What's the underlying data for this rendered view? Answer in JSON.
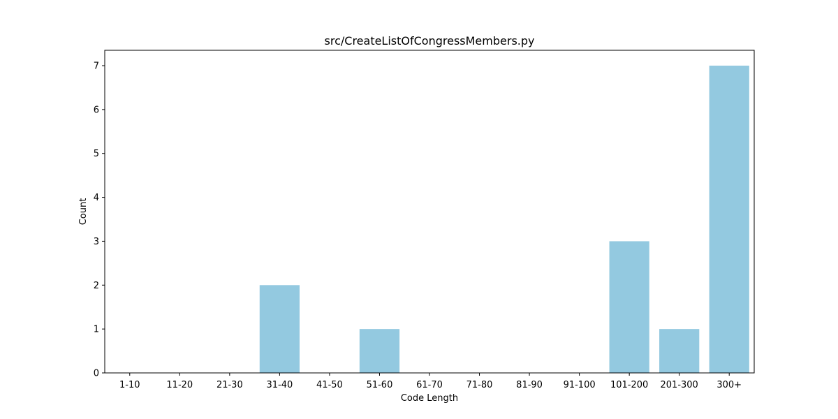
{
  "chart_data": {
    "type": "bar",
    "title": "src/CreateListOfCongressMembers.py",
    "xlabel": "Code Length",
    "ylabel": "Count",
    "categories": [
      "1-10",
      "11-20",
      "21-30",
      "31-40",
      "41-50",
      "51-60",
      "61-70",
      "71-80",
      "81-90",
      "91-100",
      "101-200",
      "201-300",
      "300+"
    ],
    "values": [
      0,
      0,
      0,
      2,
      0,
      1,
      0,
      0,
      0,
      0,
      3,
      1,
      7
    ],
    "ylim": [
      0,
      7.35
    ],
    "yticks": [
      0,
      1,
      2,
      3,
      4,
      5,
      6,
      7
    ],
    "bar_color": "#93c9e0",
    "grid": false,
    "legend": "none"
  }
}
